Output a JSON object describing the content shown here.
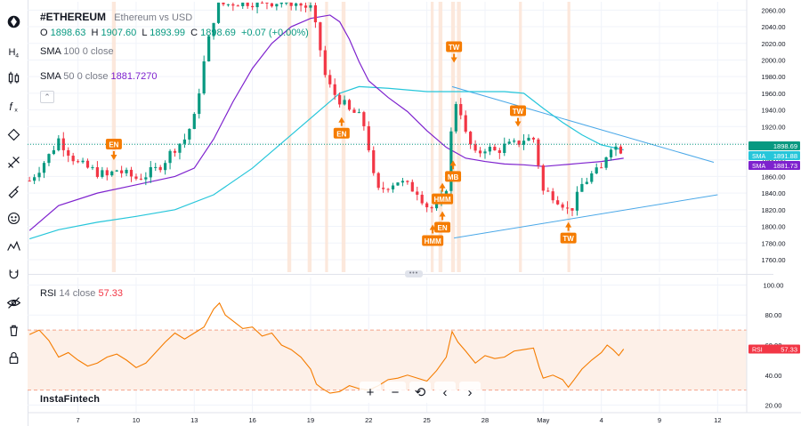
{
  "header": {
    "symbol": "#ETHEREUM",
    "description": "Ethereum vs USD",
    "ohlc": {
      "o_label": "O",
      "o": "1898.63",
      "h_label": "H",
      "h": "1907.60",
      "l_label": "L",
      "l": "1893.99",
      "c_label": "C",
      "c": "1898.69",
      "change": "+0.07 (+0.00%)"
    }
  },
  "indicators": {
    "sma100": {
      "label": "SMA",
      "params": "100 0 close",
      "value": ""
    },
    "sma50": {
      "label": "SMA",
      "params": "50 0 close",
      "value": "1881.7270"
    },
    "rsi": {
      "label": "RSI",
      "params": "14 close",
      "value": "57.33"
    }
  },
  "toolbar": {
    "icons": [
      "logo-icon",
      "timeframe-icon",
      "candles-icon",
      "indicator-icon",
      "trendline-icon",
      "fib-icon",
      "brush-icon",
      "emoji-icon",
      "pattern-icon",
      "magnet-icon",
      "eye-icon",
      "trash-icon",
      "lock-icon"
    ]
  },
  "nav": {
    "zoom_in": "+",
    "zoom_out": "−",
    "reset": "⟲",
    "back": "‹",
    "forward": "›"
  },
  "brand": "InstaFintech",
  "colors": {
    "up": "#089981",
    "down": "#f23645",
    "sma100": "#26c6da",
    "sma50": "#7e22ce",
    "rsi": "#f57c00",
    "highlight": "#fce4d6",
    "signal": "#f57c00",
    "trend": "#4aa8e8"
  },
  "chart_data": [
    {
      "type": "candlestick",
      "title": "#ETHEREUM Ethereum vs USD",
      "ylim": [
        1745,
        2070
      ],
      "y_ticks": [
        1760,
        1780,
        1800,
        1820,
        1840,
        1860,
        1880,
        1900,
        1920,
        1940,
        1960,
        1980,
        2000,
        2020,
        2040,
        2060
      ],
      "y_tick_labels": [
        "1760.00",
        "1780.00",
        "1800.00",
        "1820.00",
        "1840.00",
        "1860.00",
        "1880.00",
        "1900.00",
        "1920.00",
        "1940.00",
        "1960.00",
        "1980.00",
        "2000.00",
        "2020.00",
        "2040.00",
        "2060.00"
      ],
      "x_tick_labels": [
        {
          "label": "7",
          "day": 7
        },
        {
          "label": "10",
          "day": 10
        },
        {
          "label": "13",
          "day": 13
        },
        {
          "label": "16",
          "day": 16
        },
        {
          "label": "19",
          "day": 19
        },
        {
          "label": "22",
          "day": 22
        },
        {
          "label": "25",
          "day": 25
        },
        {
          "label": "28",
          "day": 28
        },
        {
          "label": "May",
          "day": 31
        },
        {
          "label": "4",
          "day": 34
        },
        {
          "label": "9",
          "day": 37
        },
        {
          "label": "12",
          "day": 40
        }
      ],
      "x_range": [
        4.4,
        41.5
      ],
      "last_day": 35.15,
      "close_path": [
        [
          4.5,
          1855
        ],
        [
          5.0,
          1870
        ],
        [
          5.5,
          1885
        ],
        [
          6.0,
          1905
        ],
        [
          6.5,
          1890
        ],
        [
          7.0,
          1875
        ],
        [
          7.5,
          1870
        ],
        [
          8.0,
          1865
        ],
        [
          8.5,
          1860
        ],
        [
          9.0,
          1868
        ],
        [
          9.5,
          1862
        ],
        [
          10.0,
          1858
        ],
        [
          10.5,
          1862
        ],
        [
          11.0,
          1868
        ],
        [
          11.5,
          1880
        ],
        [
          12.0,
          1895
        ],
        [
          12.5,
          1905
        ],
        [
          13.0,
          1930
        ],
        [
          13.4,
          1985
        ],
        [
          13.8,
          2030
        ],
        [
          14.2,
          2070
        ],
        [
          14.6,
          2066
        ],
        [
          15.0,
          2069
        ],
        [
          15.5,
          2070
        ],
        [
          16.0,
          2070
        ],
        [
          17.0,
          2070
        ],
        [
          18.0,
          2070
        ],
        [
          19.0,
          2062
        ],
        [
          19.4,
          2025
        ],
        [
          19.8,
          1975
        ],
        [
          20.2,
          1960
        ],
        [
          20.6,
          1950
        ],
        [
          21.0,
          1938
        ],
        [
          21.4,
          1935
        ],
        [
          21.8,
          1920
        ],
        [
          22.0,
          1895
        ],
        [
          22.2,
          1862
        ],
        [
          22.5,
          1842
        ],
        [
          23.0,
          1850
        ],
        [
          23.5,
          1855
        ],
        [
          24.0,
          1848
        ],
        [
          24.5,
          1843
        ],
        [
          25.0,
          1825
        ],
        [
          25.4,
          1820
        ],
        [
          25.7,
          1828
        ],
        [
          26.0,
          1848
        ],
        [
          26.2,
          1900
        ],
        [
          26.4,
          1945
        ],
        [
          26.6,
          1955
        ],
        [
          27.0,
          1910
        ],
        [
          27.5,
          1885
        ],
        [
          28.0,
          1895
        ],
        [
          28.5,
          1890
        ],
        [
          29.0,
          1896
        ],
        [
          29.5,
          1898
        ],
        [
          30.0,
          1905
        ],
        [
          30.5,
          1905
        ],
        [
          30.8,
          1870
        ],
        [
          31.0,
          1842
        ],
        [
          31.5,
          1838
        ],
        [
          32.0,
          1828
        ],
        [
          32.3,
          1818
        ],
        [
          32.6,
          1826
        ],
        [
          33.0,
          1850
        ],
        [
          33.5,
          1862
        ],
        [
          34.0,
          1868
        ],
        [
          34.3,
          1890
        ],
        [
          34.6,
          1902
        ],
        [
          34.9,
          1889
        ],
        [
          35.15,
          1899
        ]
      ],
      "series": [
        {
          "name": "SMA 100",
          "color": "#26c6da",
          "points": [
            [
              4.5,
              1785
            ],
            [
              6,
              1796
            ],
            [
              8,
              1805
            ],
            [
              10,
              1812
            ],
            [
              12,
              1820
            ],
            [
              14,
              1838
            ],
            [
              16,
              1870
            ],
            [
              18,
              1910
            ],
            [
              19.5,
              1940
            ],
            [
              20.5,
              1960
            ],
            [
              21.5,
              1968
            ],
            [
              23,
              1966
            ],
            [
              25,
              1962
            ],
            [
              27,
              1962
            ],
            [
              29,
              1962
            ],
            [
              30,
              1960
            ],
            [
              31,
              1942
            ],
            [
              32,
              1925
            ],
            [
              33,
              1910
            ],
            [
              34,
              1898
            ],
            [
              35.15,
              1892
            ]
          ]
        },
        {
          "name": "SMA 50",
          "color": "#7e22ce",
          "points": [
            [
              4.5,
              1795
            ],
            [
              6,
              1825
            ],
            [
              8,
              1840
            ],
            [
              10,
              1850
            ],
            [
              12,
              1860
            ],
            [
              13,
              1870
            ],
            [
              14,
              1905
            ],
            [
              15,
              1950
            ],
            [
              16,
              1990
            ],
            [
              17,
              2020
            ],
            [
              18,
              2040
            ],
            [
              19,
              2050
            ],
            [
              20,
              2054
            ],
            [
              20.5,
              2046
            ],
            [
              21,
              2025
            ],
            [
              21.5,
              1998
            ],
            [
              22,
              1975
            ],
            [
              23,
              1955
            ],
            [
              24,
              1938
            ],
            [
              25,
              1915
            ],
            [
              26,
              1895
            ],
            [
              27,
              1882
            ],
            [
              28,
              1878
            ],
            [
              29,
              1875
            ],
            [
              30,
              1874
            ],
            [
              31,
              1872
            ],
            [
              32,
              1874
            ],
            [
              33,
              1876
            ],
            [
              34,
              1878
            ],
            [
              35.15,
              1882
            ]
          ]
        }
      ],
      "trend_lines": [
        [
          [
            26.3,
            1968
          ],
          [
            39.8,
            1877
          ]
        ],
        [
          [
            26.4,
            1786
          ],
          [
            40.0,
            1838
          ]
        ]
      ],
      "highlight_bands": [
        [
          8.75,
          8.95
        ],
        [
          17.8,
          18.0
        ],
        [
          18.85,
          19.05
        ],
        [
          19.75,
          19.9
        ],
        [
          20.6,
          20.8
        ],
        [
          25.2,
          25.35
        ],
        [
          25.6,
          25.8
        ],
        [
          26.25,
          26.45
        ],
        [
          26.55,
          26.75
        ],
        [
          29.75,
          29.9
        ],
        [
          32.25,
          32.4
        ]
      ],
      "annotations": [
        {
          "text": "EN",
          "day": 8.85,
          "price": 1899,
          "arrow": "down"
        },
        {
          "text": "EN",
          "day": 20.6,
          "price": 1912,
          "arrow": "up"
        },
        {
          "text": "TW",
          "day": 26.4,
          "price": 2016,
          "arrow": "down"
        },
        {
          "text": "TW",
          "day": 29.7,
          "price": 1939,
          "arrow": "down"
        },
        {
          "text": "MB",
          "day": 26.35,
          "price": 1860,
          "arrow": "up"
        },
        {
          "text": "HMM",
          "day": 25.8,
          "price": 1833,
          "arrow": "up"
        },
        {
          "text": "EN",
          "day": 25.8,
          "price": 1799,
          "arrow": "up"
        },
        {
          "text": "HMM",
          "day": 25.3,
          "price": 1783,
          "arrow": "up"
        },
        {
          "text": "TW",
          "day": 32.3,
          "price": 1786,
          "arrow": "up"
        }
      ],
      "price_labels": [
        {
          "label": "",
          "value": "1898.69",
          "price": 1898.69,
          "color": "#089981"
        },
        {
          "label": "SMA",
          "value": "1891.88",
          "price": 1891.88,
          "color": "#26c6da"
        },
        {
          "label": "SMA",
          "value": "1881.73",
          "price": 1881.73,
          "color": "#7e22ce"
        }
      ]
    },
    {
      "type": "line",
      "title": "RSI 14 close",
      "ylim": [
        15,
        105
      ],
      "y_ticks": [
        20,
        40,
        60,
        80,
        100
      ],
      "y_tick_labels": [
        "20.00",
        "40.00",
        "60.00",
        "80.00",
        "100.00"
      ],
      "bands": [
        30,
        70
      ],
      "values": [
        [
          4.5,
          67
        ],
        [
          5.0,
          70
        ],
        [
          5.5,
          63
        ],
        [
          6.0,
          52
        ],
        [
          6.5,
          55
        ],
        [
          7.0,
          50
        ],
        [
          7.5,
          46
        ],
        [
          8.0,
          48
        ],
        [
          8.5,
          52
        ],
        [
          9.0,
          54
        ],
        [
          9.5,
          50
        ],
        [
          10.0,
          45
        ],
        [
          10.5,
          48
        ],
        [
          11.0,
          55
        ],
        [
          11.5,
          62
        ],
        [
          12.0,
          68
        ],
        [
          12.5,
          64
        ],
        [
          13.0,
          68
        ],
        [
          13.5,
          72
        ],
        [
          14.0,
          84
        ],
        [
          14.3,
          88
        ],
        [
          14.6,
          80
        ],
        [
          15.0,
          76
        ],
        [
          15.5,
          71
        ],
        [
          16.0,
          72
        ],
        [
          16.5,
          66
        ],
        [
          17.0,
          68
        ],
        [
          17.5,
          60
        ],
        [
          18.0,
          57
        ],
        [
          18.5,
          52
        ],
        [
          19.0,
          44
        ],
        [
          19.3,
          34
        ],
        [
          19.6,
          31
        ],
        [
          20.0,
          28
        ],
        [
          20.5,
          29
        ],
        [
          21.0,
          33
        ],
        [
          21.5,
          31
        ],
        [
          22.0,
          30
        ],
        [
          22.5,
          33
        ],
        [
          23.0,
          37
        ],
        [
          23.5,
          38
        ],
        [
          24.0,
          40
        ],
        [
          24.5,
          38
        ],
        [
          25.0,
          36
        ],
        [
          25.5,
          43
        ],
        [
          26.0,
          52
        ],
        [
          26.3,
          69
        ],
        [
          26.6,
          62
        ],
        [
          27.0,
          56
        ],
        [
          27.5,
          48
        ],
        [
          28.0,
          53
        ],
        [
          28.5,
          51
        ],
        [
          29.0,
          52
        ],
        [
          29.5,
          56
        ],
        [
          30.0,
          57
        ],
        [
          30.5,
          58
        ],
        [
          30.8,
          45
        ],
        [
          31.0,
          38
        ],
        [
          31.5,
          40
        ],
        [
          32.0,
          37
        ],
        [
          32.3,
          32
        ],
        [
          32.6,
          37
        ],
        [
          33.0,
          44
        ],
        [
          33.5,
          50
        ],
        [
          34.0,
          55
        ],
        [
          34.3,
          60
        ],
        [
          34.6,
          57
        ],
        [
          34.9,
          53
        ],
        [
          35.15,
          57.33
        ]
      ]
    }
  ]
}
